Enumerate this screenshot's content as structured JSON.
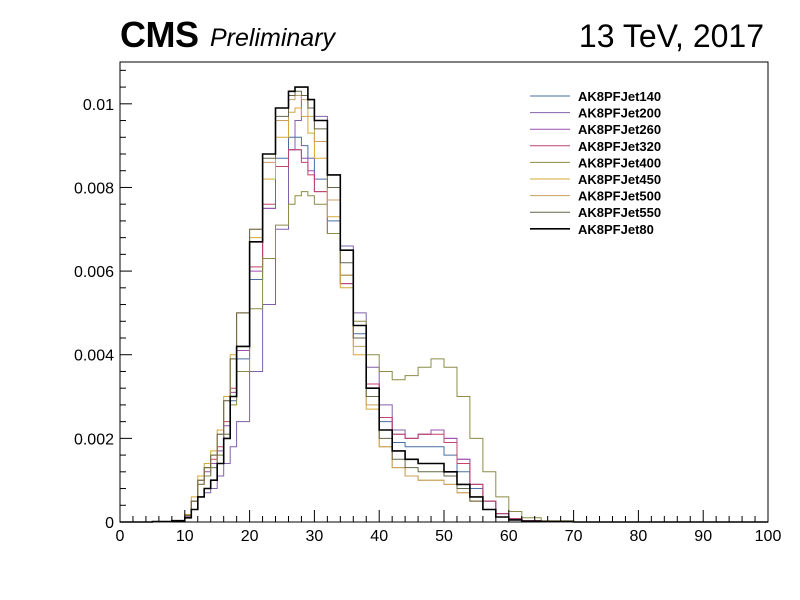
{
  "header": {
    "experiment": "CMS",
    "status": "Preliminary",
    "energy": "13 TeV, 2017"
  },
  "chart_data": {
    "type": "line",
    "title": "",
    "xlabel": "",
    "ylabel": "",
    "xlim": [
      0,
      100
    ],
    "ylim": [
      0,
      0.011
    ],
    "x_ticks": [
      "0",
      "10",
      "20",
      "30",
      "40",
      "50",
      "60",
      "70",
      "80",
      "90",
      "100"
    ],
    "y_ticks": [
      "0",
      "0.002",
      "0.004",
      "0.006",
      "0.008",
      "0.01"
    ],
    "grid": false,
    "legend_position": "top-right",
    "x": [
      0,
      5,
      8,
      10,
      11,
      12,
      13,
      14,
      15,
      16,
      17,
      18,
      20,
      22,
      24,
      26,
      27,
      28,
      29,
      30,
      32,
      34,
      36,
      38,
      40,
      42,
      44,
      46,
      48,
      50,
      52,
      54,
      56,
      58,
      60,
      62,
      65,
      70,
      75,
      80,
      90,
      100
    ],
    "series": [
      {
        "name": "AK8PFJet140",
        "color": "#4a6fa5",
        "values": [
          0,
          1e-05,
          3e-05,
          0.00015,
          0.0005,
          0.0009,
          0.0011,
          0.0013,
          0.0016,
          0.0021,
          0.0029,
          0.0039,
          0.0058,
          0.0075,
          0.0087,
          0.0092,
          0.0092,
          0.009,
          0.0087,
          0.0082,
          0.0072,
          0.0059,
          0.0045,
          0.0033,
          0.0024,
          0.0019,
          0.0018,
          0.0018,
          0.0018,
          0.0016,
          0.0012,
          0.0008,
          0.0005,
          0.0002,
          8e-05,
          3e-05,
          1e-05,
          0,
          0,
          0,
          0,
          0
        ]
      },
      {
        "name": "AK8PFJet200",
        "color": "#8060a8",
        "values": [
          0,
          1e-05,
          3e-05,
          0.00012,
          0.0003,
          0.0006,
          0.0007,
          0.0008,
          0.0011,
          0.0014,
          0.0018,
          0.0024,
          0.0036,
          0.0052,
          0.007,
          0.0089,
          0.0096,
          0.0102,
          0.0101,
          0.0097,
          0.0083,
          0.0066,
          0.005,
          0.0037,
          0.0028,
          0.0022,
          0.002,
          0.0021,
          0.0022,
          0.002,
          0.0015,
          0.0009,
          0.0005,
          0.0002,
          8e-05,
          3e-05,
          1e-05,
          0,
          0,
          0,
          0,
          0
        ]
      },
      {
        "name": "AK8PFJet260",
        "color": "#9b4fb0",
        "values": [
          0,
          1e-05,
          3e-05,
          0.00015,
          0.0005,
          0.0009,
          0.0012,
          0.0014,
          0.0017,
          0.0023,
          0.0031,
          0.0041,
          0.006,
          0.0075,
          0.0085,
          0.0089,
          0.0089,
          0.0087,
          0.0084,
          0.0079,
          0.0069,
          0.0057,
          0.0044,
          0.0033,
          0.0025,
          0.0021,
          0.002,
          0.0021,
          0.0022,
          0.002,
          0.0015,
          0.0009,
          0.0005,
          0.0002,
          8e-05,
          3e-05,
          1e-05,
          0,
          0,
          0,
          0,
          0
        ]
      },
      {
        "name": "AK8PFJet320",
        "color": "#c0446c",
        "values": [
          0,
          1e-05,
          3e-05,
          0.00016,
          0.0005,
          0.001,
          0.0013,
          0.0015,
          0.0018,
          0.0024,
          0.0032,
          0.0042,
          0.0061,
          0.0076,
          0.0085,
          0.0089,
          0.0089,
          0.0086,
          0.0083,
          0.0079,
          0.0069,
          0.0057,
          0.0044,
          0.0033,
          0.0025,
          0.0021,
          0.002,
          0.0021,
          0.0021,
          0.0019,
          0.0014,
          0.0009,
          0.0005,
          0.0002,
          8e-05,
          3e-05,
          1e-05,
          0,
          0,
          0,
          0,
          0
        ]
      },
      {
        "name": "AK8PFJet400",
        "color": "#8c8c48",
        "values": [
          0,
          1e-05,
          3e-05,
          0.00015,
          0.0005,
          0.0009,
          0.0011,
          0.0013,
          0.0016,
          0.0021,
          0.0028,
          0.0036,
          0.0051,
          0.0063,
          0.0071,
          0.0076,
          0.0078,
          0.0079,
          0.0078,
          0.0076,
          0.0069,
          0.0059,
          0.0048,
          0.004,
          0.0036,
          0.0034,
          0.0035,
          0.0037,
          0.0039,
          0.0037,
          0.003,
          0.002,
          0.0012,
          0.0006,
          0.00025,
          0.0001,
          3e-05,
          0,
          0,
          0,
          0,
          0
        ]
      },
      {
        "name": "AK8PFJet450",
        "color": "#d4a838",
        "values": [
          0,
          1e-05,
          3e-05,
          0.00018,
          0.0006,
          0.0011,
          0.0014,
          0.0017,
          0.0022,
          0.003,
          0.004,
          0.005,
          0.0068,
          0.0082,
          0.0092,
          0.0098,
          0.0099,
          0.0097,
          0.0093,
          0.0087,
          0.0073,
          0.0056,
          0.004,
          0.0027,
          0.0018,
          0.0013,
          0.0011,
          0.001,
          0.001,
          0.0009,
          0.0007,
          0.0005,
          0.0003,
          0.00012,
          5e-05,
          2e-05,
          1e-05,
          0,
          0,
          0,
          0,
          0
        ]
      },
      {
        "name": "AK8PFJet500",
        "color": "#c8a062",
        "values": [
          0,
          1e-05,
          3e-05,
          0.00016,
          0.0005,
          0.001,
          0.0013,
          0.0016,
          0.0021,
          0.0029,
          0.0039,
          0.005,
          0.007,
          0.0086,
          0.0096,
          0.0101,
          0.0102,
          0.0101,
          0.0097,
          0.0091,
          0.0077,
          0.0059,
          0.0042,
          0.0028,
          0.0018,
          0.0013,
          0.0011,
          0.001,
          0.001,
          0.0009,
          0.0007,
          0.0005,
          0.0003,
          0.00012,
          5e-05,
          2e-05,
          1e-05,
          0,
          0,
          0,
          0,
          0
        ]
      },
      {
        "name": "AK8PFJet550",
        "color": "#66664a",
        "values": [
          0,
          1e-05,
          3e-05,
          0.00016,
          0.0005,
          0.001,
          0.0013,
          0.0016,
          0.0021,
          0.0029,
          0.0039,
          0.005,
          0.007,
          0.0087,
          0.0097,
          0.0102,
          0.0103,
          0.0102,
          0.0099,
          0.0094,
          0.008,
          0.0062,
          0.0044,
          0.003,
          0.002,
          0.0015,
          0.0013,
          0.0012,
          0.0012,
          0.0011,
          0.0008,
          0.0005,
          0.0003,
          0.00012,
          5e-05,
          2e-05,
          1e-05,
          0,
          0,
          0,
          0,
          0
        ]
      },
      {
        "name": "AK8PFJet80",
        "color": "#000000",
        "width": 1.6,
        "values": [
          0,
          1e-05,
          3e-05,
          0.0001,
          0.0003,
          0.0006,
          0.0008,
          0.001,
          0.0014,
          0.002,
          0.003,
          0.0042,
          0.0067,
          0.0088,
          0.0099,
          0.0103,
          0.0104,
          0.0104,
          0.0101,
          0.0096,
          0.0083,
          0.0065,
          0.0047,
          0.0032,
          0.0022,
          0.0017,
          0.0015,
          0.0014,
          0.0014,
          0.0012,
          0.0009,
          0.0006,
          0.0003,
          0.00012,
          5e-05,
          2e-05,
          1e-05,
          0,
          0,
          0,
          0,
          0
        ]
      }
    ]
  }
}
